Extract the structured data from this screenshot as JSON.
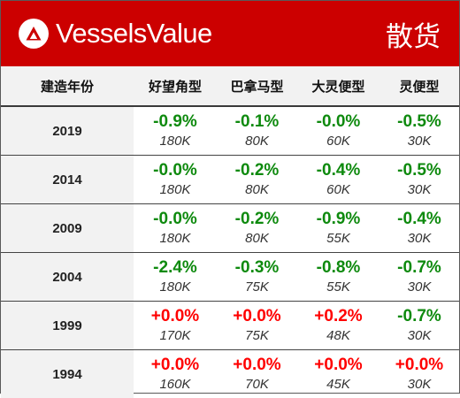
{
  "header": {
    "brand": "VesselsValue",
    "segment": "散货",
    "background_color": "#cc0000",
    "logo_icon": "vesselsvalue-logo-icon"
  },
  "table": {
    "columns": [
      "建造年份",
      "好望角型",
      "巴拿马型",
      "大灵便型",
      "灵便型"
    ],
    "rows": [
      {
        "year": "2019",
        "cells": [
          {
            "change": "-0.9%",
            "size": "180K",
            "trend": "neg"
          },
          {
            "change": "-0.1%",
            "size": "80K",
            "trend": "neg"
          },
          {
            "change": "-0.0%",
            "size": "60K",
            "trend": "neg"
          },
          {
            "change": "-0.5%",
            "size": "30K",
            "trend": "neg"
          }
        ]
      },
      {
        "year": "2014",
        "cells": [
          {
            "change": "-0.0%",
            "size": "180K",
            "trend": "neg"
          },
          {
            "change": "-0.2%",
            "size": "80K",
            "trend": "neg"
          },
          {
            "change": "-0.4%",
            "size": "60K",
            "trend": "neg"
          },
          {
            "change": "-0.5%",
            "size": "30K",
            "trend": "neg"
          }
        ]
      },
      {
        "year": "2009",
        "cells": [
          {
            "change": "-0.0%",
            "size": "180K",
            "trend": "neg"
          },
          {
            "change": "-0.2%",
            "size": "80K",
            "trend": "neg"
          },
          {
            "change": "-0.9%",
            "size": "55K",
            "trend": "neg"
          },
          {
            "change": "-0.4%",
            "size": "30K",
            "trend": "neg"
          }
        ]
      },
      {
        "year": "2004",
        "cells": [
          {
            "change": "-2.4%",
            "size": "180K",
            "trend": "neg"
          },
          {
            "change": "-0.3%",
            "size": "75K",
            "trend": "neg"
          },
          {
            "change": "-0.8%",
            "size": "55K",
            "trend": "neg"
          },
          {
            "change": "-0.7%",
            "size": "30K",
            "trend": "neg"
          }
        ]
      },
      {
        "year": "1999",
        "cells": [
          {
            "change": "+0.0%",
            "size": "170K",
            "trend": "pos"
          },
          {
            "change": "+0.0%",
            "size": "75K",
            "trend": "pos"
          },
          {
            "change": "+0.2%",
            "size": "48K",
            "trend": "pos"
          },
          {
            "change": "-0.7%",
            "size": "30K",
            "trend": "neg"
          }
        ]
      },
      {
        "year": "1994",
        "cells": [
          {
            "change": "+0.0%",
            "size": "160K",
            "trend": "pos"
          },
          {
            "change": "+0.0%",
            "size": "70K",
            "trend": "pos"
          },
          {
            "change": "+0.0%",
            "size": "45K",
            "trend": "pos"
          },
          {
            "change": "+0.0%",
            "size": "30K",
            "trend": "pos"
          }
        ]
      }
    ],
    "colors": {
      "negative": "#0e8a0e",
      "positive": "#ff0000",
      "header_background": "#f2f2f2"
    }
  }
}
